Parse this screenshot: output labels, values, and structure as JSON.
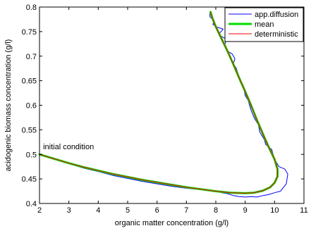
{
  "chart_data": {
    "type": "line",
    "title": "",
    "xlabel": "organic matter concentration (g/l)",
    "ylabel": "acidogenic biomass concentration (g/l)",
    "xlim": [
      2,
      11
    ],
    "ylim": [
      0.4,
      0.8
    ],
    "xticks": [
      "2",
      "3",
      "4",
      "5",
      "6",
      "7",
      "8",
      "9",
      "10",
      "11"
    ],
    "yticks": [
      "0.4",
      "0.45",
      "0.5",
      "0.55",
      "0.6",
      "0.65",
      "0.7",
      "0.75",
      "0.8"
    ],
    "grid": false,
    "legend_position": "top-right",
    "annotation": {
      "text": "initial condition",
      "x": 2.05,
      "y": 0.502
    },
    "series": [
      {
        "name": "app.diffusion",
        "color": "#0000ff",
        "stroke": "thin",
        "x": [
          2.0,
          2.5,
          3.0,
          3.5,
          4.0,
          4.5,
          5.0,
          5.5,
          6.0,
          6.5,
          7.0,
          7.5,
          8.0,
          8.2,
          8.4,
          8.6,
          8.8,
          9.0,
          9.2,
          9.4,
          9.6,
          9.8,
          10.0,
          10.2,
          10.4,
          10.45,
          10.35,
          10.15,
          10.0,
          9.9,
          9.7,
          9.65,
          9.5,
          9.45,
          9.3,
          9.2,
          9.1,
          9.0,
          8.95,
          8.85,
          8.75,
          8.7,
          8.6,
          8.65,
          8.55,
          8.4,
          8.3,
          8.35,
          8.2,
          8.1,
          8.25,
          8.0,
          7.9,
          7.95,
          7.8,
          7.8
        ],
        "y": [
          0.501,
          0.49,
          0.481,
          0.472,
          0.465,
          0.457,
          0.451,
          0.445,
          0.44,
          0.435,
          0.431,
          0.428,
          0.425,
          0.422,
          0.42,
          0.416,
          0.414,
          0.413,
          0.414,
          0.413,
          0.416,
          0.418,
          0.422,
          0.425,
          0.44,
          0.46,
          0.47,
          0.475,
          0.49,
          0.51,
          0.52,
          0.53,
          0.545,
          0.56,
          0.575,
          0.59,
          0.61,
          0.62,
          0.635,
          0.65,
          0.665,
          0.675,
          0.685,
          0.695,
          0.705,
          0.71,
          0.72,
          0.735,
          0.74,
          0.745,
          0.755,
          0.76,
          0.765,
          0.772,
          0.78,
          0.79
        ]
      },
      {
        "name": "mean",
        "color": "#00dd00",
        "stroke": "thick",
        "x": [
          2.0,
          2.5,
          3.0,
          3.5,
          4.0,
          4.5,
          5.0,
          5.5,
          6.0,
          6.5,
          7.0,
          7.5,
          8.0,
          8.5,
          9.0,
          9.3,
          9.6,
          9.85,
          10.0,
          10.1,
          10.1,
          10.0,
          9.8,
          9.6,
          9.4,
          9.2,
          9.0,
          8.8,
          8.6,
          8.4,
          8.2,
          8.0,
          7.9,
          7.82
        ],
        "y": [
          0.5,
          0.491,
          0.482,
          0.474,
          0.467,
          0.46,
          0.454,
          0.448,
          0.443,
          0.438,
          0.433,
          0.429,
          0.425,
          0.422,
          0.421,
          0.422,
          0.426,
          0.433,
          0.442,
          0.455,
          0.47,
          0.49,
          0.515,
          0.542,
          0.57,
          0.6,
          0.628,
          0.655,
          0.683,
          0.71,
          0.735,
          0.76,
          0.775,
          0.79
        ]
      },
      {
        "name": "deterministic",
        "color": "#ff0000",
        "stroke": "thin",
        "x": [
          2.0,
          2.5,
          3.0,
          3.5,
          4.0,
          4.5,
          5.0,
          5.5,
          6.0,
          6.5,
          7.0,
          7.5,
          8.0,
          8.5,
          9.0,
          9.3,
          9.6,
          9.85,
          10.0,
          10.1,
          10.1,
          10.0,
          9.8,
          9.6,
          9.4,
          9.2,
          9.0,
          8.8,
          8.6,
          8.4,
          8.2,
          8.0,
          7.9,
          7.82
        ],
        "y": [
          0.5,
          0.491,
          0.482,
          0.474,
          0.467,
          0.46,
          0.454,
          0.448,
          0.443,
          0.438,
          0.433,
          0.429,
          0.425,
          0.422,
          0.421,
          0.422,
          0.426,
          0.433,
          0.442,
          0.455,
          0.47,
          0.49,
          0.515,
          0.542,
          0.57,
          0.6,
          0.628,
          0.655,
          0.683,
          0.71,
          0.735,
          0.76,
          0.775,
          0.79
        ]
      }
    ]
  }
}
